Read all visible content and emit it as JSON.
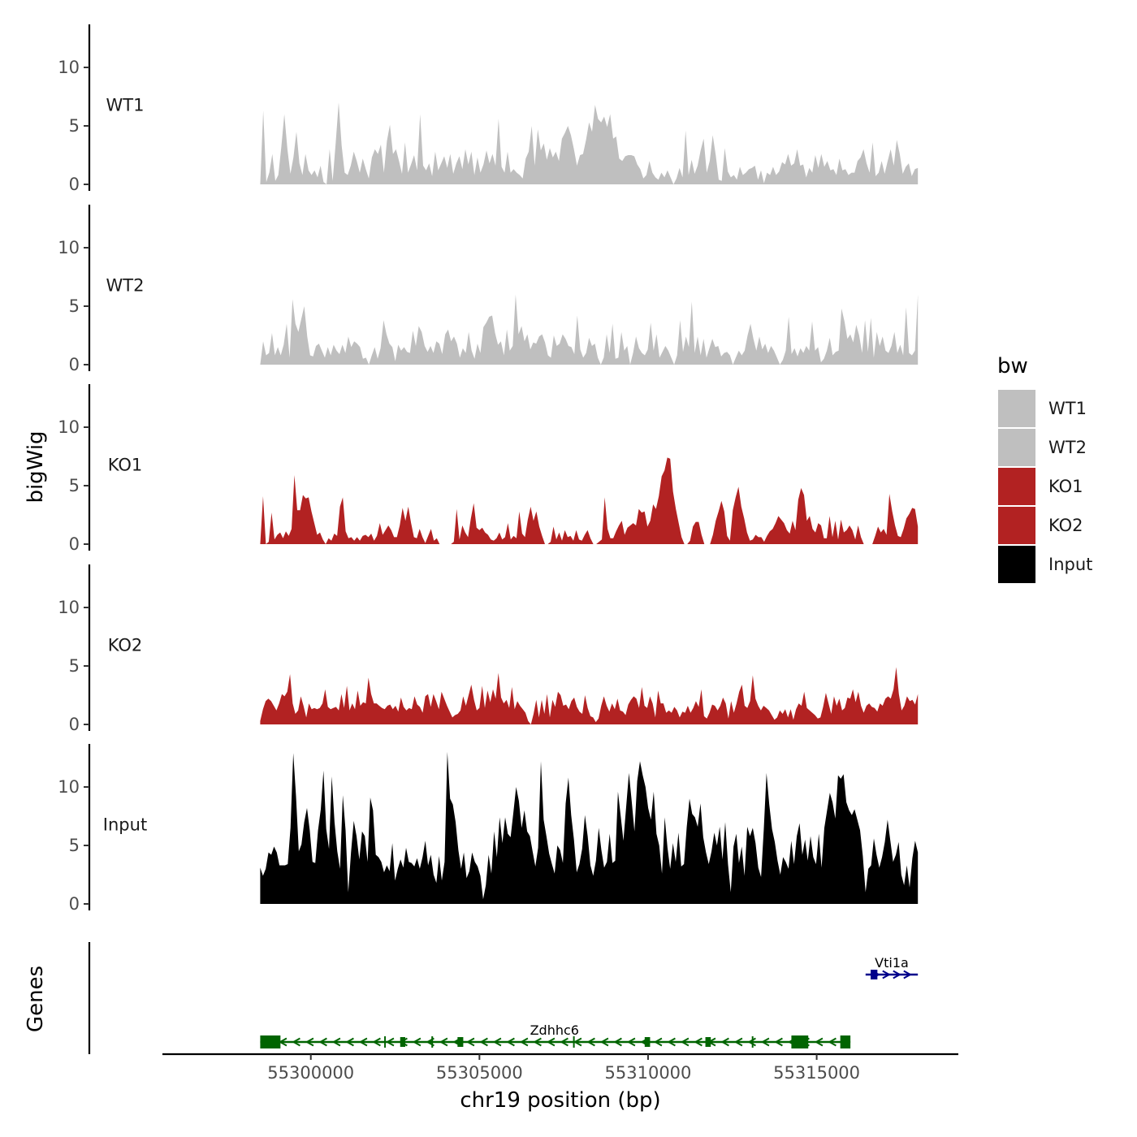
{
  "chart_data": {
    "type": "area",
    "chromosome": "chr19",
    "xlabel": "chr19 position (bp)",
    "ylabel": "bigWig",
    "genes_label": "Genes",
    "xlim": [
      55295600,
      55319200
    ],
    "data_range": [
      55298500,
      55318000
    ],
    "x_ticks": [
      55300000,
      55305000,
      55310000,
      55315000
    ],
    "x_tick_labels": [
      "55300000",
      "55305000",
      "55310000",
      "55315000"
    ],
    "ylim": [
      0,
      13.5
    ],
    "y_ticks": [
      0,
      5,
      10
    ],
    "y_tick_labels": [
      "0",
      "5",
      "10"
    ],
    "legend": {
      "title": "bw",
      "entries": [
        {
          "label": "WT1",
          "color": "#bfbfbf"
        },
        {
          "label": "WT2",
          "color": "#bfbfbf"
        },
        {
          "label": "KO1",
          "color": "#b22222"
        },
        {
          "label": "KO2",
          "color": "#b22222"
        },
        {
          "label": "Input",
          "color": "#000000"
        }
      ]
    },
    "series": [
      {
        "name": "WT1",
        "color": "#bfbfbf",
        "values": [
          0,
          6.3,
          0.2,
          1.0,
          2.6,
          0.3,
          0.8,
          3.2,
          6.0,
          3.0,
          0.9,
          2.3,
          4.5,
          1.8,
          0.8,
          2.6,
          1.2,
          0.8,
          1.2,
          0.6,
          1.6,
          0.2,
          0,
          3.0,
          0.3,
          3.5,
          7.0,
          3.3,
          1.0,
          0.8,
          1.6,
          2.8,
          2.0,
          1.0,
          2.2,
          1.3,
          0.5,
          2.3,
          3.0,
          2.6,
          3.4,
          1.0,
          3.7,
          5.1,
          2.6,
          3.0,
          2.0,
          0.9,
          3.6,
          1.0,
          1.7,
          2.5,
          1.2,
          6.0,
          1.6,
          1.2,
          1.8,
          0.7,
          2.8,
          1.2,
          1.8,
          2.4,
          1.4,
          2.6,
          0.9,
          1.8,
          2.4,
          1.3,
          3.0,
          1.7,
          2.8,
          0.8,
          2.3,
          1.0,
          1.7,
          2.9,
          1.8,
          2.6,
          1.6,
          5.6,
          1.5,
          1.0,
          2.8,
          1.0,
          1.3,
          1.0,
          0.8,
          0.5,
          2.2,
          2.8,
          5.0,
          1.6,
          4.7,
          2.9,
          3.5,
          2.1,
          3.1,
          2.3,
          2.8,
          2.0,
          3.9,
          4.4,
          5.0,
          4.2,
          3.0,
          1.6,
          2.5,
          2.6,
          3.8,
          5.3,
          4.5,
          6.8,
          5.6,
          5.3,
          5.8,
          4.9,
          6.0,
          3.9,
          4.1,
          2.2,
          2.0,
          2.4,
          2.5,
          2.5,
          2.4,
          1.7,
          1.3,
          0.5,
          0.8,
          2.0,
          1.0,
          0.6,
          0.4,
          1.0,
          0.6,
          1.2,
          0.6,
          0,
          0.5,
          1.4,
          0.6,
          4.6,
          0.8,
          2.1,
          0.9,
          1.6,
          2.9,
          3.9,
          1.0,
          2.0,
          4.2,
          2.5,
          0.4,
          0.3,
          3.1,
          1.1,
          0.6,
          0.8,
          0.4,
          1.5,
          0.8,
          1.0,
          1.3,
          1.4,
          1.6,
          0.4,
          1.2,
          0.1,
          1.0,
          0.8,
          1.5,
          0.8,
          1.1,
          1.9,
          1.7,
          2.6,
          1.6,
          1.8,
          3.0,
          1.6,
          1.7,
          0.6,
          1.4,
          1.0,
          2.5,
          1.4,
          2.6,
          1.5,
          2.0,
          1.2,
          1.3,
          0.8,
          2.2,
          1.2,
          1.3,
          0.8,
          1.0,
          1.0,
          2.0,
          2.3,
          3.0,
          1.8,
          1.0,
          3.6,
          0.7,
          1.0,
          2.0,
          0.9,
          2.0,
          3.0,
          1.6,
          3.8,
          2.6,
          0.9,
          1.5,
          1.8,
          0.7,
          1.3,
          1.4
        ]
      },
      {
        "name": "WT2",
        "color": "#bfbfbf",
        "values": [
          0,
          2.0,
          0.8,
          1.0,
          2.7,
          0.8,
          1.5,
          0.8,
          1.7,
          3.5,
          0.6,
          5.6,
          3.5,
          2.8,
          3.9,
          5.0,
          2.4,
          0.8,
          0.7,
          1.6,
          1.8,
          1.2,
          0.6,
          1.5,
          0.8,
          1.7,
          1.2,
          0.9,
          1.7,
          1.0,
          2.4,
          1.5,
          2.0,
          1.8,
          1.5,
          0.5,
          0.6,
          0,
          0.8,
          1.5,
          0.5,
          1.4,
          3.8,
          2.6,
          1.8,
          1.5,
          0.3,
          1.7,
          1.2,
          1.5,
          1.1,
          1.0,
          2.9,
          1.6,
          3.3,
          2.8,
          1.6,
          1.1,
          1.6,
          1.0,
          2.0,
          1.8,
          0.9,
          2.6,
          3.0,
          2.0,
          2.4,
          1.8,
          0.6,
          1.4,
          1.0,
          2.8,
          1.2,
          0.5,
          1.8,
          1.0,
          3.2,
          3.6,
          4.1,
          4.2,
          2.7,
          1.7,
          2.0,
          0.8,
          3.0,
          1.2,
          1.6,
          6.0,
          2.6,
          3.3,
          2.0,
          2.6,
          1.3,
          1.9,
          1.8,
          2.4,
          2.6,
          1.9,
          0.8,
          0.6,
          2.5,
          1.6,
          1.8,
          2.6,
          2.2,
          1.6,
          1.5,
          0.9,
          4.2,
          1.3,
          0.6,
          1.0,
          2.3,
          1.6,
          1.8,
          0.6,
          0,
          0.6,
          2.6,
          1.0,
          3.5,
          0.5,
          0.6,
          2.8,
          1.2,
          1.6,
          0,
          1.0,
          2.4,
          1.4,
          1.0,
          0.8,
          1.3,
          3.6,
          1.2,
          2.6,
          0.6,
          1.1,
          1.6,
          1.2,
          0.6,
          0,
          0.8,
          3.8,
          1.1,
          2.4,
          1.5,
          5.4,
          1.0,
          2.4,
          0.8,
          2.2,
          0.6,
          1.4,
          2.2,
          1.5,
          1.6,
          0.7,
          1.0,
          1.1,
          0.8,
          0,
          0.6,
          1.2,
          0.8,
          1.2,
          2.5,
          3.5,
          2.2,
          1.2,
          2.4,
          1.3,
          1.8,
          1.0,
          1.6,
          1.2,
          0.6,
          0,
          0.4,
          1.2,
          4.1,
          0.9,
          1.4,
          0.7,
          1.4,
          1.0,
          1.6,
          1.2,
          3.7,
          1.2,
          1.5,
          0.2,
          0.5,
          1.2,
          2.3,
          0.8,
          1.1,
          1.2,
          4.8,
          3.7,
          2.2,
          2.6,
          1.9,
          3.4,
          2.5,
          1.0,
          3.8,
          1.1,
          4.0,
          0.6,
          2.8,
          1.6,
          2.4,
          1.2,
          1.0,
          1.6,
          2.8,
          1.0,
          1.7,
          0.8,
          4.9,
          1.0,
          0.8,
          1.2,
          6.0
        ]
      },
      {
        "name": "KO1",
        "color": "#b22222",
        "values": [
          0,
          4.1,
          0,
          0.2,
          2.7,
          0.4,
          0.8,
          1.0,
          0.5,
          1.1,
          0.7,
          1.3,
          5.9,
          2.9,
          2.9,
          4.2,
          3.9,
          4.0,
          2.8,
          1.8,
          0.8,
          1.0,
          0.4,
          0,
          0.5,
          0.3,
          0.9,
          0.7,
          3.2,
          4.0,
          1.1,
          0.5,
          0.6,
          0.3,
          0.6,
          0.3,
          0.7,
          0.8,
          0.6,
          0.9,
          0.3,
          0.7,
          1.8,
          0.8,
          1.2,
          1.6,
          1.2,
          0.6,
          0.6,
          1.6,
          3.1,
          2.0,
          3.2,
          1.8,
          0.6,
          0.5,
          1.3,
          0.6,
          0.1,
          0.7,
          1.3,
          0.3,
          0.5,
          0,
          0,
          0,
          0,
          0,
          0.2,
          3.0,
          0.4,
          1.6,
          1.0,
          0.6,
          2.2,
          3.5,
          1.4,
          1.2,
          1.4,
          1.0,
          0.8,
          0.4,
          0.3,
          0.5,
          1.0,
          0.4,
          0.6,
          1.8,
          0.4,
          0.7,
          0.5,
          2.8,
          0.9,
          0.6,
          2.1,
          3.2,
          2.0,
          2.8,
          1.5,
          0.7,
          0,
          0,
          0.2,
          1.5,
          0.4,
          1.0,
          0.3,
          1.2,
          0.6,
          0.7,
          0.3,
          1.2,
          0.4,
          0.3,
          0.8,
          1.2,
          0.5,
          0,
          0,
          0.2,
          0.4,
          4.0,
          1.3,
          0.5,
          0.5,
          1.1,
          1.6,
          2.0,
          0.8,
          1.4,
          1.6,
          1.8,
          1.6,
          3.0,
          2.7,
          2.8,
          1.5,
          2.0,
          3.4,
          3.0,
          4.1,
          5.8,
          6.3,
          7.4,
          7.3,
          4.5,
          3.0,
          1.8,
          0.6,
          0,
          0,
          0.3,
          1.5,
          1.9,
          1.9,
          0.8,
          0,
          0,
          0,
          0.8,
          2.0,
          2.8,
          3.7,
          2.8,
          0.7,
          0.3,
          2.9,
          4.0,
          4.9,
          3.2,
          2.2,
          1.0,
          0.3,
          0.4,
          0.8,
          0.6,
          0.6,
          0.2,
          0.7,
          1.1,
          1.3,
          1.8,
          2.4,
          2.1,
          1.8,
          1.2,
          0.9,
          2.0,
          1.2,
          3.8,
          4.8,
          4.2,
          2.0,
          2.4,
          1.3,
          1.0,
          1.8,
          1.6,
          0.5,
          0.5,
          2.4,
          0.6,
          2.0,
          0.4,
          2.1,
          1.0,
          1.2,
          1.6,
          1.2,
          0.4,
          1.6,
          0.6,
          0,
          0,
          0,
          0,
          0.7,
          1.5,
          1.0,
          1.3,
          0.8,
          4.3,
          2.8,
          1.6,
          0.7,
          0.6,
          1.3,
          2.2,
          2.6,
          3.1,
          3.0,
          1.5
        ]
      },
      {
        "name": "KO2",
        "color": "#b22222",
        "values": [
          0.3,
          1.3,
          2.0,
          2.2,
          2.0,
          1.6,
          1.2,
          1.8,
          2.6,
          2.4,
          2.8,
          4.3,
          1.8,
          0.9,
          1.2,
          2.4,
          1.6,
          0.6,
          1.8,
          1.3,
          1.4,
          1.3,
          1.4,
          1.8,
          3.0,
          1.5,
          1.3,
          1.4,
          1.5,
          1.2,
          2.6,
          1.4,
          3.3,
          1.2,
          1.8,
          1.3,
          2.9,
          1.6,
          1.9,
          1.8,
          4.0,
          2.6,
          1.8,
          1.8,
          1.6,
          1.4,
          1.3,
          1.6,
          1.7,
          1.3,
          1.6,
          1.1,
          2.3,
          1.5,
          1.2,
          1.4,
          1.3,
          2.4,
          1.7,
          1.5,
          1.0,
          2.4,
          2.6,
          1.5,
          2.6,
          2.0,
          1.3,
          2.8,
          2.2,
          1.6,
          1.1,
          0.6,
          0.8,
          0.9,
          1.2,
          2.4,
          1.6,
          2.5,
          3.4,
          2.1,
          1.2,
          1.4,
          3.3,
          1.4,
          2.9,
          1.9,
          3.0,
          2.2,
          4.4,
          2.3,
          1.8,
          2.1,
          1.4,
          3.2,
          1.3,
          2.0,
          1.6,
          1.3,
          1.0,
          0.3,
          0,
          0.9,
          2.1,
          0.6,
          2.1,
          0.9,
          2.6,
          0.6,
          2.1,
          1.5,
          2.8,
          2.5,
          1.6,
          1.7,
          1.3,
          2.0,
          2.3,
          1.5,
          1.1,
          0.9,
          2.5,
          1.4,
          0.7,
          0.6,
          0.2,
          0.5,
          1.6,
          2.4,
          1.6,
          1.1,
          1.8,
          1.3,
          2.2,
          1.2,
          1.1,
          0.8,
          1.7,
          2.1,
          2.4,
          2.2,
          1.4,
          3.2,
          1.6,
          1.4,
          2.4,
          1.8,
          0.6,
          2.9,
          1.8,
          1.8,
          1.0,
          1.2,
          1.0,
          1.5,
          1.2,
          0.6,
          1.1,
          1.0,
          1.6,
          1.0,
          1.4,
          2.0,
          1.5,
          3.0,
          0.7,
          0.5,
          1.0,
          1.7,
          1.6,
          1.2,
          1.6,
          2.3,
          1.8,
          0.5,
          2.0,
          1.0,
          1.8,
          2.8,
          3.4,
          1.6,
          1.4,
          2.0,
          4.2,
          2.2,
          1.6,
          1.2,
          1.6,
          1.4,
          1.2,
          0.8,
          0.4,
          0.6,
          1.2,
          0.9,
          1.3,
          0.6,
          1.3,
          0.4,
          1.3,
          1.8,
          1.6,
          2.8,
          1.4,
          1.2,
          1.0,
          0.8,
          0.5,
          0.6,
          1.5,
          2.7,
          1.8,
          0.9,
          2.4,
          1.6,
          2.2,
          1.2,
          1.4,
          2.3,
          2.2,
          3.0,
          1.9,
          2.8,
          1.6,
          1.0,
          1.6,
          1.8,
          1.5,
          1.4,
          1.1,
          1.8,
          1.6,
          2.2,
          2.4,
          2.2,
          3.0,
          4.9,
          2.6,
          1.2,
          1.6,
          2.4,
          2.0,
          2.1,
          1.7,
          2.6
        ]
      },
      {
        "name": "Input",
        "color": "#000000",
        "values": [
          3.1,
          2.4,
          3.0,
          4.4,
          4.2,
          4.9,
          4.4,
          3.3,
          3.3,
          3.3,
          3.4,
          6.5,
          12.9,
          9.2,
          4.5,
          5.1,
          7.0,
          8.2,
          6.3,
          3.6,
          3.5,
          6.3,
          8.1,
          11.4,
          6.4,
          4.7,
          10.9,
          7.0,
          4.5,
          3.0,
          9.3,
          6.3,
          1.0,
          4.4,
          7.1,
          5.8,
          3.8,
          6.2,
          5.8,
          3.6,
          9.1,
          8.0,
          4.2,
          4.0,
          3.6,
          2.7,
          3.3,
          2.8,
          5.2,
          2.0,
          3.0,
          3.8,
          3.1,
          4.8,
          3.6,
          3.5,
          3.2,
          3.9,
          3.0,
          4.0,
          5.4,
          3.3,
          4.2,
          2.5,
          1.8,
          4.1,
          2.0,
          3.6,
          13.0,
          9.0,
          8.5,
          7.0,
          4.6,
          3.0,
          4.4,
          2.2,
          2.8,
          4.4,
          3.6,
          3.2,
          2.4,
          0.4,
          1.6,
          4.2,
          2.6,
          6.2,
          4.0,
          7.4,
          5.2,
          7.4,
          6.0,
          5.7,
          7.8,
          10.0,
          8.8,
          6.5,
          8.0,
          6.2,
          5.8,
          4.5,
          3.2,
          4.8,
          12.2,
          7.2,
          5.8,
          4.3,
          3.4,
          2.6,
          5.0,
          4.6,
          3.5,
          8.6,
          10.8,
          7.6,
          5.5,
          2.7,
          3.4,
          4.7,
          7.6,
          5.8,
          3.3,
          2.4,
          3.7,
          6.5,
          4.6,
          3.1,
          3.6,
          6.0,
          3.5,
          3.7,
          9.6,
          7.5,
          5.4,
          8.3,
          11.2,
          8.8,
          6.2,
          10.5,
          12.2,
          11.0,
          10.0,
          8.2,
          7.2,
          9.6,
          6.0,
          5.0,
          2.6,
          7.4,
          4.8,
          3.0,
          5.2,
          3.6,
          6.1,
          3.2,
          3.4,
          6.6,
          9.0,
          7.7,
          7.4,
          6.6,
          8.6,
          5.7,
          4.4,
          3.4,
          4.5,
          6.1,
          5.0,
          6.6,
          3.8,
          7.0,
          3.4,
          1.0,
          4.9,
          6.0,
          3.5,
          4.9,
          2.4,
          6.6,
          5.8,
          6.5,
          5.2,
          3.1,
          2.3,
          6.3,
          11.2,
          8.5,
          6.4,
          5.3,
          3.7,
          2.5,
          4.0,
          3.6,
          3.0,
          5.4,
          3.4,
          5.8,
          6.9,
          4.2,
          5.5,
          3.7,
          5.8,
          4.0,
          3.4,
          6.0,
          3.1,
          6.5,
          8.0,
          9.5,
          8.7,
          7.3,
          11.0,
          10.7,
          11.1,
          8.7,
          8.0,
          7.6,
          8.1,
          7.2,
          6.3,
          4.1,
          1.0,
          3.0,
          3.3,
          5.6,
          4.2,
          3.1,
          4.0,
          5.3,
          7.2,
          5.4,
          3.6,
          4.2,
          5.3,
          2.5,
          1.6,
          3.3,
          1.4,
          3.9,
          5.4,
          4.4
        ]
      }
    ],
    "genes": [
      {
        "name": "Zdhhc6",
        "strand": "-",
        "color": "#006400",
        "start": 55298500,
        "end": 55316000,
        "exons": [
          [
            55298500,
            55299100
          ],
          [
            55302650,
            55302800
          ],
          [
            55304350,
            55304520
          ],
          [
            55309900,
            55310060
          ],
          [
            55311700,
            55311860
          ],
          [
            55314250,
            55314750
          ],
          [
            55315700,
            55316000
          ]
        ]
      },
      {
        "name": "Vti1a",
        "strand": "+",
        "color": "#00008b",
        "start": 55316450,
        "end": 55318000,
        "exons": [
          [
            55316600,
            55316800
          ]
        ]
      }
    ]
  }
}
